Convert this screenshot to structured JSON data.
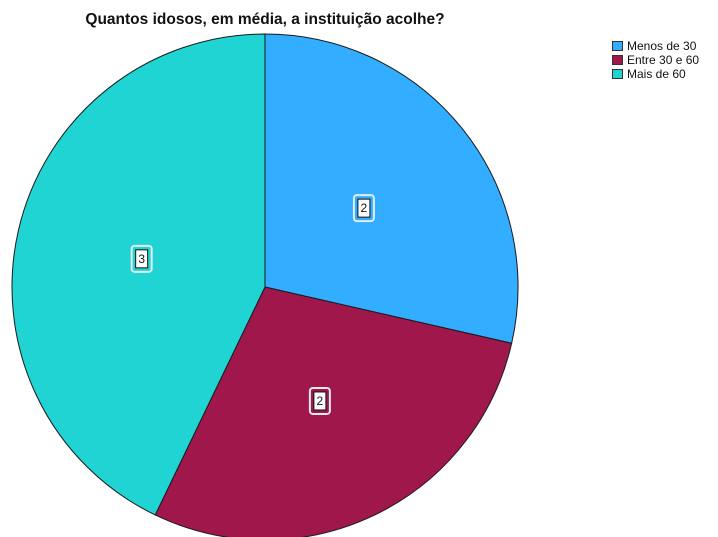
{
  "chart_data": {
    "type": "pie",
    "title": "Quantos idosos, em média, a instituição acolhe?",
    "categories": [
      "Menos de 30",
      "Entre 30 e 60",
      "Mais de 60"
    ],
    "values": [
      2,
      2,
      3
    ],
    "data_labels": [
      "2",
      "2",
      "3"
    ],
    "colors": [
      "#33adff",
      "#a0174b",
      "#21d4d4"
    ],
    "start_angle_deg": 0,
    "direction": "clockwise",
    "legend_position": "top-right"
  }
}
